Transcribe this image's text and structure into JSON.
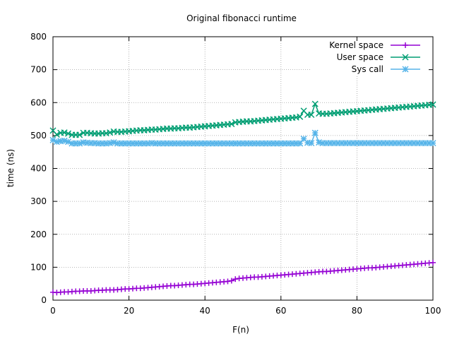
{
  "chart_data": {
    "type": "line",
    "title": "Original fibonacci runtime",
    "xlabel": "F(n)",
    "ylabel": "time (ns)",
    "xlim": [
      0,
      100
    ],
    "ylim": [
      0,
      800
    ],
    "xticks": [
      0,
      20,
      40,
      60,
      80,
      100
    ],
    "yticks": [
      0,
      100,
      200,
      300,
      400,
      500,
      600,
      700,
      800
    ],
    "grid": true,
    "legend_position": "top-right",
    "series": [
      {
        "name": "Kernel space",
        "color": "#9400d3",
        "marker": "plus",
        "values": [
          24,
          23,
          24,
          25,
          25,
          26,
          27,
          27,
          28,
          28,
          28,
          29,
          30,
          30,
          31,
          31,
          31,
          32,
          33,
          34,
          34,
          35,
          36,
          36,
          37,
          38,
          39,
          40,
          41,
          42,
          43,
          44,
          44,
          45,
          46,
          47,
          48,
          48,
          49,
          50,
          51,
          52,
          53,
          54,
          55,
          56,
          57,
          59,
          64,
          66,
          67,
          68,
          69,
          70,
          70,
          71,
          72,
          73,
          74,
          75,
          76,
          77,
          78,
          79,
          80,
          81,
          82,
          83,
          84,
          85,
          86,
          87,
          87,
          88,
          89,
          90,
          91,
          92,
          93,
          94,
          95,
          96,
          97,
          98,
          98,
          99,
          100,
          101,
          102,
          103,
          104,
          105,
          106,
          107,
          108,
          109,
          110,
          111,
          112,
          113,
          114
        ]
      },
      {
        "name": "User space",
        "color": "#009e73",
        "marker": "x",
        "values": [
          515,
          503,
          508,
          509,
          506,
          502,
          502,
          502,
          508,
          508,
          507,
          506,
          506,
          507,
          507,
          509,
          512,
          511,
          511,
          512,
          513,
          514,
          515,
          516,
          516,
          517,
          518,
          518,
          519,
          520,
          521,
          521,
          522,
          522,
          523,
          524,
          524,
          525,
          526,
          527,
          528,
          529,
          530,
          531,
          532,
          533,
          534,
          535,
          540,
          541,
          542,
          543,
          543,
          544,
          545,
          546,
          547,
          548,
          549,
          550,
          551,
          552,
          553,
          554,
          555,
          557,
          575,
          563,
          563,
          596,
          567,
          566,
          566,
          567,
          568,
          569,
          570,
          571,
          572,
          573,
          574,
          575,
          576,
          577,
          578,
          579,
          580,
          581,
          582,
          583,
          584,
          585,
          586,
          587,
          588,
          589,
          590,
          591,
          592,
          593,
          594
        ]
      },
      {
        "name": "Sys call",
        "color": "#56b4e9",
        "marker": "star",
        "values": [
          486,
          481,
          483,
          484,
          481,
          476,
          476,
          476,
          479,
          478,
          477,
          477,
          476,
          476,
          476,
          477,
          479,
          476,
          476,
          476,
          476,
          476,
          476,
          476,
          476,
          476,
          477,
          476,
          476,
          476,
          476,
          476,
          476,
          476,
          476,
          476,
          476,
          476,
          476,
          476,
          476,
          476,
          476,
          476,
          476,
          476,
          476,
          476,
          476,
          476,
          476,
          476,
          476,
          476,
          476,
          476,
          476,
          476,
          476,
          476,
          476,
          476,
          476,
          476,
          476,
          476,
          490,
          478,
          477,
          508,
          479,
          477,
          477,
          477,
          477,
          477,
          477,
          477,
          477,
          477,
          477,
          477,
          477,
          477,
          477,
          477,
          477,
          477,
          477,
          477,
          477,
          477,
          477,
          477,
          477,
          477,
          477,
          477,
          477,
          477,
          477
        ]
      }
    ]
  }
}
